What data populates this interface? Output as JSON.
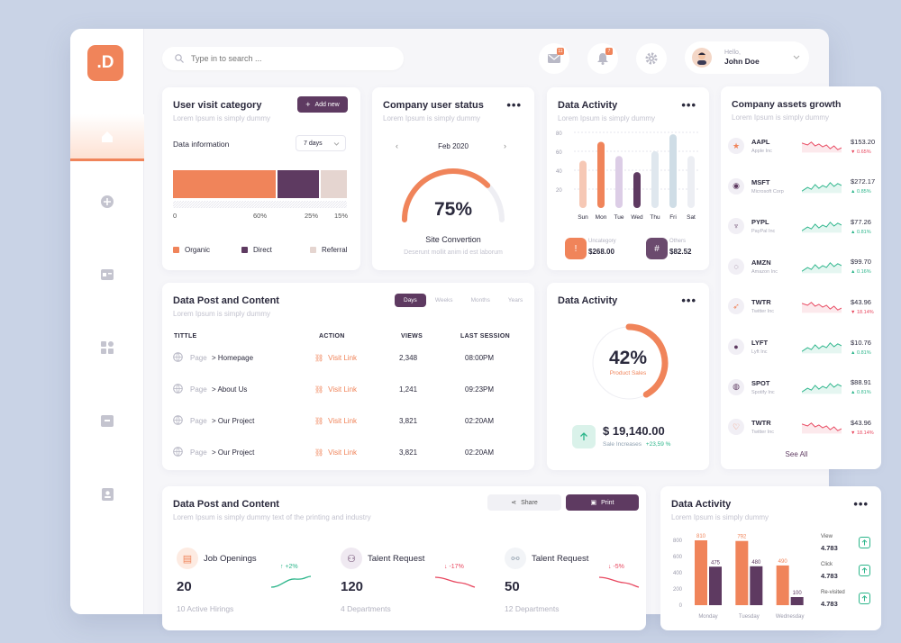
{
  "search": {
    "placeholder": "Type in to search ..."
  },
  "header": {
    "mail_badge": "11",
    "bell_badge": "7",
    "hello": "Hello,",
    "user_name": "John Doe"
  },
  "logo": ".D",
  "user_visit": {
    "title": "User visit category",
    "subtitle": "Lorem Ipsum is simply dummy",
    "add_label": "Add new",
    "data_info": "Data information",
    "range": "7 days",
    "zero": "0",
    "bars": [
      {
        "name": "Organic",
        "pct_label": "60%",
        "value": 60,
        "color": "#f0845a"
      },
      {
        "name": "Direct",
        "pct_label": "25%",
        "value": 25,
        "color": "#5e3a61"
      },
      {
        "name": "Referral",
        "pct_label": "15%",
        "value": 15,
        "color": "#e5d5d0"
      }
    ]
  },
  "company_status": {
    "title": "Company user status",
    "subtitle": "Lorem Ipsum is simply dummy",
    "month": "Feb 2020",
    "percent_label": "75%",
    "percent": 75,
    "label": "Site Convertion",
    "desc": "Deserunt mollit anim id est laborum"
  },
  "data_activity_1": {
    "title": "Data Activity",
    "subtitle": "Lorem Ipsum is simply dummy",
    "uncategory_label": "Uncategory",
    "uncategory_value": "$268.00",
    "others_label": "Others",
    "others_value": "$82.52"
  },
  "chart_data": [
    {
      "type": "bar",
      "title": "Data Activity",
      "categories": [
        "Sun",
        "Mon",
        "Tue",
        "Wed",
        "Thu",
        "Fri",
        "Sat"
      ],
      "values": [
        50,
        70,
        55,
        38,
        60,
        78,
        55
      ],
      "ylim": [
        0,
        80
      ],
      "yticks": [
        "80",
        "60",
        "40",
        "20"
      ],
      "colors": [
        "#f6c8b5",
        "#f0845a",
        "#dccde6",
        "#5e3a61",
        "#dfe7ee",
        "#cfdde6",
        "#eceef3"
      ]
    },
    {
      "type": "bar",
      "title": "Data Activity",
      "categories": [
        "Monday",
        "Tuesday",
        "Wednesday"
      ],
      "yticks": [
        "800",
        "600",
        "400",
        "200",
        "0"
      ],
      "ylim": [
        0,
        800
      ],
      "series": [
        {
          "values": [
            810,
            792,
            490
          ],
          "labels": [
            "810",
            "792",
            "490"
          ],
          "color": "#f0845a"
        },
        {
          "values": [
            475,
            480,
            100
          ],
          "labels": [
            "475",
            "480",
            "100"
          ],
          "color": "#5e3a61"
        }
      ]
    }
  ],
  "posts": {
    "title": "Data Post and Content",
    "subtitle": "Lorem Ipsum is simply dummy",
    "tabs": [
      "Days",
      "Weeks",
      "Months",
      "Years"
    ],
    "headers": [
      "TITTLE",
      "ACTION",
      "VIEWS",
      "LAST SESSION"
    ],
    "rows": [
      {
        "type": "Page",
        "title": "> Homepage",
        "action": "Visit Link",
        "views": "2,348",
        "session": "08:00PM"
      },
      {
        "type": "Page",
        "title": "> About Us",
        "action": "Visit Link",
        "views": "1,241",
        "session": "09:23PM"
      },
      {
        "type": "Page",
        "title": "> Our Project",
        "action": "Visit Link",
        "views": "3,821",
        "session": "02:20AM"
      },
      {
        "type": "Page",
        "title": "> Our Project",
        "action": "Visit Link",
        "views": "3,821",
        "session": "02:20AM"
      }
    ]
  },
  "data_activity_2": {
    "title": "Data Activity",
    "percent_label": "42%",
    "percent": 42,
    "sub": "Product Sales",
    "amount": "$ 19,140.00",
    "increase_label": "Sale Increases",
    "increase_value": "+23,59 %"
  },
  "assets": {
    "title": "Company assets growth",
    "subtitle": "Lorem Ipsum is simply dummy",
    "see_all": "See All",
    "items": [
      {
        "ticker": "AAPL",
        "name": "Apple Inc",
        "price": "$153.20",
        "change": "0.65%",
        "up": false,
        "icon": "★"
      },
      {
        "ticker": "MSFT",
        "name": "Microsoft Corp",
        "price": "$272.17",
        "change": "0.85%",
        "up": true,
        "icon": "◉"
      },
      {
        "ticker": "PYPL",
        "name": "PayPal Inc",
        "price": "$77.26",
        "change": "0.81%",
        "up": true,
        "icon": "♆"
      },
      {
        "ticker": "AMZN",
        "name": "Amazon Inc",
        "price": "$99.70",
        "change": "0.16%",
        "up": true,
        "icon": "◌"
      },
      {
        "ticker": "TWTR",
        "name": "Twitter Inc",
        "price": "$43.96",
        "change": "18.14%",
        "up": false,
        "icon": "➶"
      },
      {
        "ticker": "LYFT",
        "name": "Lyft Inc",
        "price": "$10.76",
        "change": "0.81%",
        "up": true,
        "icon": "●"
      },
      {
        "ticker": "SPOT",
        "name": "Spotify Inc",
        "price": "$88.91",
        "change": "0.81%",
        "up": true,
        "icon": "◍"
      },
      {
        "ticker": "TWTR",
        "name": "Twitter Inc",
        "price": "$43.96",
        "change": "18.14%",
        "up": false,
        "icon": "♡"
      }
    ]
  },
  "posts_2": {
    "title": "Data Post and Content",
    "subtitle": "Lorem Ipsum is simply dummy text of the printing and industry",
    "share": "Share",
    "print": "Print",
    "stats": [
      {
        "label": "Job Openings",
        "value": "20",
        "sub": "10 Active Hirings",
        "change": "+2%",
        "up": true
      },
      {
        "label": "Talent Request",
        "value": "120",
        "sub": "4 Departments",
        "change": "-17%",
        "up": false
      },
      {
        "label": "Talent Request",
        "value": "50",
        "sub": "12 Departments",
        "change": "-5%",
        "up": false
      }
    ]
  },
  "data_activity_3": {
    "title": "Data Activity",
    "subtitle": "Lorem Ipsum is simply dummy",
    "metrics": [
      {
        "label": "View",
        "value": "4.783"
      },
      {
        "label": "Click",
        "value": "4.783"
      },
      {
        "label": "Re-visited",
        "value": "4.783"
      }
    ]
  },
  "colors": {
    "accent": "#f0845a",
    "brand": "#5e3a61",
    "up": "#2bb58a",
    "down": "#e8475f"
  }
}
